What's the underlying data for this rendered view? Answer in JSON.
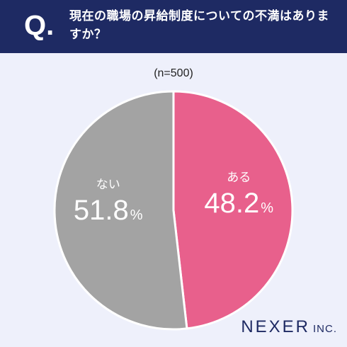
{
  "header": {
    "q_mark": "Q.",
    "title": "現在の職場の昇給制度についての不満はありますか？"
  },
  "sample_size": "(n=500)",
  "colors": {
    "header": "#1e2a63",
    "yes": "#e8608c",
    "no": "#a3a3a3",
    "background": "#eef0fb"
  },
  "chart_data": {
    "type": "pie",
    "slices": [
      {
        "label": "ある",
        "value": 48.2,
        "display": "48.2",
        "unit": "%",
        "color": "#e8608c"
      },
      {
        "label": "ない",
        "value": 51.8,
        "display": "51.8",
        "unit": "%",
        "color": "#a3a3a3"
      }
    ]
  },
  "logo": {
    "main": "NEXER",
    "suffix": "INC."
  }
}
